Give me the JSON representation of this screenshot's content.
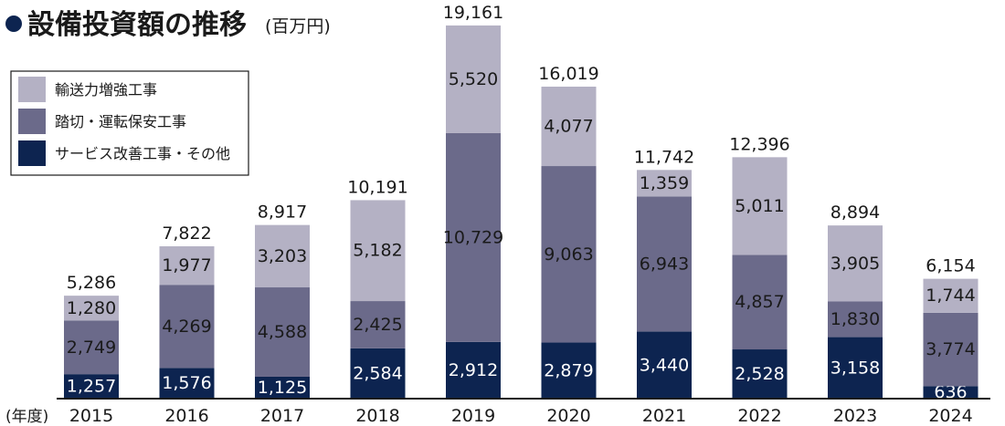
{
  "title": "設備投資額の推移",
  "unit": "(百万円)",
  "chart_data": {
    "type": "bar",
    "stacked": true,
    "title": "設備投資額の推移",
    "unit": "(百万円)",
    "x_prefix": "(年度)",
    "categories": [
      "2015",
      "2016",
      "2017",
      "2018",
      "2019",
      "2020",
      "2021",
      "2022",
      "2023",
      "2024"
    ],
    "series": [
      {
        "name": "サービス改善工事・その他",
        "color": "#0d2450",
        "text_color": "#ffffff",
        "values": [
          1257,
          1576,
          1125,
          2584,
          2912,
          2879,
          3440,
          2528,
          3158,
          636
        ]
      },
      {
        "name": "踏切・運転保安工事",
        "color": "#6b6a8a",
        "text_color": "#1a1a1a",
        "values": [
          2749,
          4269,
          4588,
          2425,
          10729,
          9063,
          6943,
          4857,
          1830,
          3774
        ]
      },
      {
        "name": "輸送力増強工事",
        "color": "#b4b1c4",
        "text_color": "#1a1a1a",
        "values": [
          1280,
          1977,
          3203,
          5182,
          5520,
          4077,
          1359,
          5011,
          3905,
          1744
        ]
      }
    ],
    "totals": [
      5286,
      7822,
      8917,
      10191,
      19161,
      16019,
      11742,
      12396,
      8894,
      6154
    ],
    "legend_order": [
      "輸送力増強工事",
      "踏切・運転保安工事",
      "サービス改善工事・その他"
    ],
    "legend_position": "top-left",
    "grid": false
  }
}
